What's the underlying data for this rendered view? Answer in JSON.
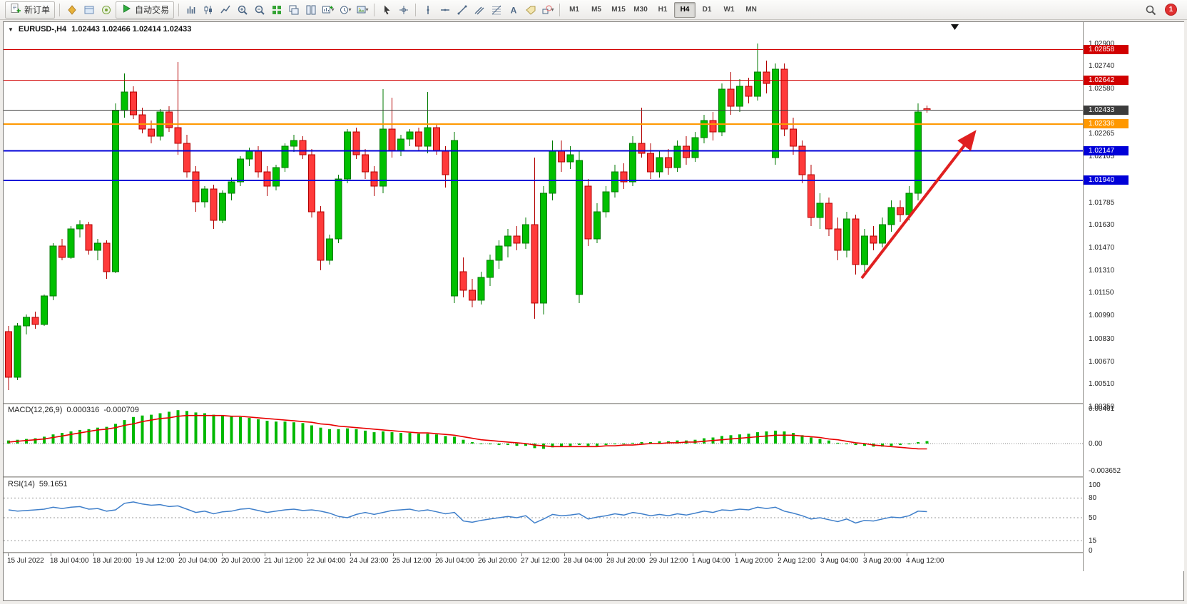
{
  "toolbar": {
    "new_order_label": "新订单",
    "auto_trading_label": "自动交易",
    "badge_count": "1",
    "icons_left": [
      "market-watch",
      "data-window",
      "news"
    ],
    "icons_chart": [
      "bars",
      "candles",
      "line",
      "zoom-in",
      "zoom-out",
      "tile",
      "cascade",
      "tilev",
      "chart-plus",
      "clock",
      "image"
    ],
    "icons_tools": [
      "cursor",
      "crosshair",
      "vline",
      "hline",
      "trend",
      "channel",
      "fibo",
      "text",
      "label",
      "shapes"
    ],
    "timeframes": [
      "M1",
      "M5",
      "M15",
      "M30",
      "H1",
      "H4",
      "D1",
      "W1",
      "MN"
    ],
    "active_timeframe": "H4"
  },
  "chart": {
    "symbol_period": "EURUSD-,H4",
    "ohlc": "1.02443  1.02466  1.02414  1.02433",
    "colors": {
      "up_fill": "#00c000",
      "up_stroke": "#007a00",
      "down_fill": "#ff3a3a",
      "down_stroke": "#b30000",
      "arrow": "#e02020",
      "current_line": "#3c3c3c"
    },
    "price_ticks": [
      {
        "v": 1.029,
        "l": "1.02900"
      },
      {
        "v": 1.0274,
        "l": "1.02740"
      },
      {
        "v": 1.0258,
        "l": "1.02580"
      },
      {
        "v": 1.02265,
        "l": "1.02265"
      },
      {
        "v": 1.02105,
        "l": "1.02105"
      },
      {
        "v": 1.01785,
        "l": "1.01785"
      },
      {
        "v": 1.0163,
        "l": "1.01630"
      },
      {
        "v": 1.0147,
        "l": "1.01470"
      },
      {
        "v": 1.0131,
        "l": "1.01310"
      },
      {
        "v": 1.0115,
        "l": "1.01150"
      },
      {
        "v": 1.0099,
        "l": "1.00990"
      },
      {
        "v": 1.0083,
        "l": "1.00830"
      },
      {
        "v": 1.0067,
        "l": "1.00670"
      },
      {
        "v": 1.0051,
        "l": "1.00510"
      },
      {
        "v": 1.0035,
        "l": "1.00350"
      }
    ],
    "hlines": [
      {
        "price": 1.02858,
        "label": "1.02858",
        "color": "#d10000",
        "width": 1
      },
      {
        "price": 1.02642,
        "label": "1.02642",
        "color": "#d10000",
        "width": 1
      },
      {
        "price": 1.02336,
        "label": "1.02336",
        "color": "#ff9800",
        "width": 2
      },
      {
        "price": 1.02147,
        "label": "1.02147",
        "color": "#0000d8",
        "width": 2
      },
      {
        "price": 1.0194,
        "label": "1.01940",
        "color": "#0000d8",
        "width": 2
      }
    ],
    "current_price": {
      "price": 1.02433,
      "label": "1.02433",
      "color": "#3c3c3c"
    },
    "candles": [
      [
        1.0088,
        1.0092,
        1.0047,
        1.0056
      ],
      [
        1.0056,
        1.0094,
        1.0054,
        1.0092
      ],
      [
        1.0092,
        1.01,
        1.0086,
        1.0098
      ],
      [
        1.0098,
        1.0102,
        1.009,
        1.0093
      ],
      [
        1.0093,
        1.0114,
        1.0092,
        1.0113
      ],
      [
        1.0113,
        1.015,
        1.011,
        1.0148
      ],
      [
        1.0148,
        1.0153,
        1.0138,
        1.014
      ],
      [
        1.014,
        1.0162,
        1.0139,
        1.016
      ],
      [
        1.016,
        1.0166,
        1.0154,
        1.0163
      ],
      [
        1.0163,
        1.0165,
        1.0142,
        1.0145
      ],
      [
        1.0145,
        1.0153,
        1.0138,
        1.015
      ],
      [
        1.015,
        1.0152,
        1.0125,
        1.013
      ],
      [
        1.013,
        1.0248,
        1.0129,
        1.0243
      ],
      [
        1.0243,
        1.0269,
        1.0238,
        1.0256
      ],
      [
        1.0256,
        1.026,
        1.0237,
        1.024
      ],
      [
        1.024,
        1.0245,
        1.0227,
        1.023
      ],
      [
        1.023,
        1.0236,
        1.022,
        1.0225
      ],
      [
        1.0225,
        1.0244,
        1.0222,
        1.0242
      ],
      [
        1.0242,
        1.0246,
        1.0228,
        1.0231
      ],
      [
        1.0231,
        1.0277,
        1.0212,
        1.022
      ],
      [
        1.022,
        1.0226,
        1.0196,
        1.02
      ],
      [
        1.02,
        1.0204,
        1.0172,
        1.0179
      ],
      [
        1.0179,
        1.019,
        1.0175,
        1.0188
      ],
      [
        1.0188,
        1.0191,
        1.016,
        1.0166
      ],
      [
        1.0166,
        1.0187,
        1.0164,
        1.0185
      ],
      [
        1.0185,
        1.0196,
        1.018,
        1.0193
      ],
      [
        1.0193,
        1.0211,
        1.019,
        1.0209
      ],
      [
        1.0209,
        1.0217,
        1.0204,
        1.0215
      ],
      [
        1.0215,
        1.0218,
        1.0196,
        1.02
      ],
      [
        1.02,
        1.0204,
        1.0183,
        1.019
      ],
      [
        1.019,
        1.0205,
        1.0187,
        1.0203
      ],
      [
        1.0203,
        1.022,
        1.02,
        1.0218
      ],
      [
        1.0218,
        1.0226,
        1.0214,
        1.0222
      ],
      [
        1.0222,
        1.0225,
        1.0209,
        1.0212
      ],
      [
        1.0212,
        1.0216,
        1.0168,
        1.0172
      ],
      [
        1.0172,
        1.0176,
        1.0131,
        1.0138
      ],
      [
        1.0138,
        1.0156,
        1.0135,
        1.0153
      ],
      [
        1.0153,
        1.0198,
        1.015,
        1.0195
      ],
      [
        1.0195,
        1.023,
        1.0192,
        1.0228
      ],
      [
        1.0228,
        1.0231,
        1.0209,
        1.0212
      ],
      [
        1.0212,
        1.0216,
        1.0195,
        1.02
      ],
      [
        1.02,
        1.0204,
        1.0183,
        1.019
      ],
      [
        1.019,
        1.0258,
        1.0185,
        1.023
      ],
      [
        1.023,
        1.0252,
        1.021,
        1.0215
      ],
      [
        1.0215,
        1.0226,
        1.0211,
        1.0223
      ],
      [
        1.0223,
        1.023,
        1.0218,
        1.0228
      ],
      [
        1.0228,
        1.0231,
        1.0215,
        1.0218
      ],
      [
        1.0218,
        1.0256,
        1.0213,
        1.0231
      ],
      [
        1.0231,
        1.0234,
        1.0212,
        1.0215
      ],
      [
        1.0215,
        1.0218,
        1.0189,
        1.0198
      ],
      [
        1.0113,
        1.0228,
        1.0108,
        1.0222
      ],
      [
        1.013,
        1.014,
        1.0112,
        1.0117
      ],
      [
        1.0117,
        1.0125,
        1.0105,
        1.011
      ],
      [
        1.011,
        1.013,
        1.0107,
        1.0126
      ],
      [
        1.0126,
        1.0142,
        1.012,
        1.0138
      ],
      [
        1.0138,
        1.0152,
        1.0132,
        1.0148
      ],
      [
        1.0148,
        1.016,
        1.014,
        1.0155
      ],
      [
        1.0155,
        1.0162,
        1.0145,
        1.015
      ],
      [
        1.015,
        1.0168,
        1.0146,
        1.0163
      ],
      [
        1.0163,
        1.021,
        1.0097,
        1.0108
      ],
      [
        1.0108,
        1.019,
        1.01,
        1.0185
      ],
      [
        1.0185,
        1.0222,
        1.018,
        1.0215
      ],
      [
        1.0215,
        1.0222,
        1.02,
        1.0207
      ],
      [
        1.0207,
        1.0218,
        1.0202,
        1.0212
      ],
      [
        1.0114,
        1.0215,
        1.0108,
        1.0208
      ],
      [
        1.019,
        1.0195,
        1.0148,
        1.0153
      ],
      [
        1.0153,
        1.0178,
        1.015,
        1.0172
      ],
      [
        1.0172,
        1.019,
        1.0168,
        1.0186
      ],
      [
        1.0186,
        1.0205,
        1.0182,
        1.02
      ],
      [
        1.02,
        1.0206,
        1.0188,
        1.0193
      ],
      [
        1.0193,
        1.0225,
        1.019,
        1.022
      ],
      [
        1.022,
        1.0245,
        1.021,
        1.0213
      ],
      [
        1.0213,
        1.022,
        1.0195,
        1.02
      ],
      [
        1.02,
        1.0215,
        1.0196,
        1.021
      ],
      [
        1.021,
        1.0216,
        1.0198,
        1.0203
      ],
      [
        1.0203,
        1.0222,
        1.02,
        1.0218
      ],
      [
        1.0218,
        1.0225,
        1.0205,
        1.021
      ],
      [
        1.021,
        1.0228,
        1.0207,
        1.0224
      ],
      [
        1.0224,
        1.024,
        1.022,
        1.0236
      ],
      [
        1.0236,
        1.0242,
        1.0222,
        1.0228
      ],
      [
        1.0228,
        1.0262,
        1.0225,
        1.0258
      ],
      [
        1.0258,
        1.027,
        1.024,
        1.0246
      ],
      [
        1.0246,
        1.0265,
        1.0242,
        1.026
      ],
      [
        1.026,
        1.0266,
        1.0248,
        1.0253
      ],
      [
        1.0253,
        1.029,
        1.025,
        1.027
      ],
      [
        1.027,
        1.0278,
        1.0255,
        1.0262
      ],
      [
        1.021,
        1.0276,
        1.0205,
        1.0272
      ],
      [
        1.0272,
        1.0276,
        1.0225,
        1.023
      ],
      [
        1.023,
        1.0238,
        1.0212,
        1.0218
      ],
      [
        1.0218,
        1.0222,
        1.0192,
        1.0198
      ],
      [
        1.0198,
        1.0205,
        1.0162,
        1.0168
      ],
      [
        1.0168,
        1.0185,
        1.016,
        1.0178
      ],
      [
        1.0178,
        1.0182,
        1.0155,
        1.016
      ],
      [
        1.016,
        1.0168,
        1.0138,
        1.0145
      ],
      [
        1.0145,
        1.0172,
        1.014,
        1.0167
      ],
      [
        1.0167,
        1.017,
        1.0128,
        1.0135
      ],
      [
        1.0135,
        1.016,
        1.013,
        1.0155
      ],
      [
        1.0155,
        1.0162,
        1.0145,
        1.015
      ],
      [
        1.015,
        1.0168,
        1.0147,
        1.0163
      ],
      [
        1.0163,
        1.018,
        1.0158,
        1.0175
      ],
      [
        1.0175,
        1.018,
        1.0165,
        1.017
      ],
      [
        1.017,
        1.019,
        1.0166,
        1.0185
      ],
      [
        1.0185,
        1.0248,
        1.018,
        1.0242
      ],
      [
        1.02443,
        1.02466,
        1.02414,
        1.02433
      ]
    ],
    "time_labels": [
      "15 Jul 2022",
      "18 Jul 04:00",
      "18 Jul 20:00",
      "19 Jul 12:00",
      "20 Jul 04:00",
      "20 Jul 20:00",
      "21 Jul 12:00",
      "22 Jul 04:00",
      "24 Jul 23:00",
      "25 Jul 12:00",
      "26 Jul 04:00",
      "26 Jul 20:00",
      "27 Jul 12:00",
      "28 Jul 04:00",
      "28 Jul 20:00",
      "29 Jul 12:00",
      "1 Aug 04:00",
      "1 Aug 20:00",
      "2 Aug 12:00",
      "3 Aug 04:00",
      "3 Aug 20:00",
      "4 Aug 12:00"
    ]
  },
  "macd": {
    "title": "MACD(12,26,9)",
    "value_main": "0.000316",
    "value_signal": "-0.000709",
    "axis": [
      {
        "v": 0.00461,
        "l": "0.00461"
      },
      {
        "v": 0,
        "l": "0.00"
      },
      {
        "v": -0.003652,
        "l": "-0.003652"
      }
    ],
    "histogram": [
      0.0004,
      0.0005,
      0.0006,
      0.0007,
      0.0009,
      0.0012,
      0.0014,
      0.0016,
      0.0018,
      0.0019,
      0.0021,
      0.0022,
      0.0026,
      0.0031,
      0.0035,
      0.0037,
      0.0038,
      0.004,
      0.0042,
      0.0044,
      0.0043,
      0.0041,
      0.004,
      0.0038,
      0.0037,
      0.0036,
      0.0035,
      0.0034,
      0.0032,
      0.003,
      0.0029,
      0.0029,
      0.0028,
      0.0027,
      0.0024,
      0.0021,
      0.0019,
      0.0019,
      0.002,
      0.0019,
      0.0017,
      0.0015,
      0.0016,
      0.0015,
      0.0014,
      0.0014,
      0.0013,
      0.0013,
      0.0012,
      0.001,
      0.0009,
      0.0005,
      0.0002,
      0.0,
      -0.0001,
      -0.0002,
      -0.0002,
      -0.0003,
      -0.0003,
      -0.0006,
      -0.0007,
      -0.0005,
      -0.0004,
      -0.0003,
      -0.0002,
      -0.0003,
      -0.0003,
      -0.0002,
      -0.0001,
      -0.0001,
      0.0001,
      0.0002,
      0.0002,
      0.0003,
      0.0003,
      0.0004,
      0.0004,
      0.0005,
      0.0007,
      0.0008,
      0.001,
      0.0011,
      0.0012,
      0.0013,
      0.0015,
      0.0016,
      0.0017,
      0.0016,
      0.0014,
      0.0011,
      0.0008,
      0.0006,
      0.0004,
      0.0001,
      0.0,
      -0.0002,
      -0.0003,
      -0.0004,
      -0.0004,
      -0.0003,
      -0.0002,
      -0.0001,
      0.0002,
      0.000316
    ],
    "signal": [
      0.0002,
      0.0003,
      0.0004,
      0.0005,
      0.0006,
      0.0008,
      0.001,
      0.0012,
      0.0014,
      0.0016,
      0.0018,
      0.0019,
      0.0021,
      0.0024,
      0.0026,
      0.0029,
      0.0031,
      0.0033,
      0.0034,
      0.0036,
      0.0037,
      0.0037,
      0.0037,
      0.0037,
      0.0037,
      0.0036,
      0.0036,
      0.0035,
      0.0034,
      0.0033,
      0.0032,
      0.0031,
      0.003,
      0.0029,
      0.0028,
      0.0026,
      0.0025,
      0.0023,
      0.0022,
      0.0021,
      0.002,
      0.0019,
      0.0018,
      0.0017,
      0.0016,
      0.0015,
      0.0014,
      0.0014,
      0.0013,
      0.0012,
      0.0011,
      0.0009,
      0.0007,
      0.0005,
      0.0004,
      0.0003,
      0.0002,
      0.0001,
      0.0,
      -0.0002,
      -0.0003,
      -0.0004,
      -0.0004,
      -0.0004,
      -0.0004,
      -0.0004,
      -0.0004,
      -0.0003,
      -0.0003,
      -0.0002,
      -0.0002,
      -0.0001,
      0.0,
      0.0,
      0.0001,
      0.0001,
      0.0002,
      0.0002,
      0.0003,
      0.0004,
      0.0005,
      0.0006,
      0.0007,
      0.0008,
      0.0009,
      0.001,
      0.0011,
      0.0011,
      0.0011,
      0.001,
      0.0009,
      0.0008,
      0.0006,
      0.0005,
      0.0003,
      0.0001,
      0.0,
      -0.0002,
      -0.0003,
      -0.0004,
      -0.0005,
      -0.0006,
      -0.0007,
      -0.000709
    ]
  },
  "rsi": {
    "title": "RSI(14)",
    "value": "59.1651",
    "axis": [
      {
        "v": 100,
        "l": "100"
      },
      {
        "v": 80,
        "l": "80"
      },
      {
        "v": 50,
        "l": "50"
      },
      {
        "v": 15,
        "l": "15"
      },
      {
        "v": 0,
        "l": "0"
      }
    ],
    "levels": [
      80,
      50,
      15
    ],
    "values": [
      62,
      60,
      61,
      62,
      63,
      66,
      64,
      66,
      67,
      63,
      64,
      60,
      62,
      72,
      74,
      71,
      69,
      70,
      67,
      68,
      63,
      58,
      60,
      56,
      59,
      60,
      63,
      64,
      61,
      58,
      60,
      62,
      63,
      61,
      62,
      60,
      57,
      52,
      50,
      55,
      58,
      55,
      58,
      61,
      62,
      63,
      60,
      62,
      59,
      56,
      58,
      45,
      43,
      46,
      48,
      50,
      52,
      50,
      53,
      42,
      48,
      55,
      53,
      54,
      56,
      48,
      51,
      53,
      56,
      54,
      58,
      56,
      53,
      55,
      53,
      56,
      54,
      57,
      60,
      58,
      62,
      61,
      63,
      62,
      66,
      64,
      66,
      60,
      57,
      53,
      48,
      50,
      47,
      44,
      48,
      42,
      46,
      45,
      48,
      51,
      50,
      53,
      60,
      59.2
    ]
  }
}
